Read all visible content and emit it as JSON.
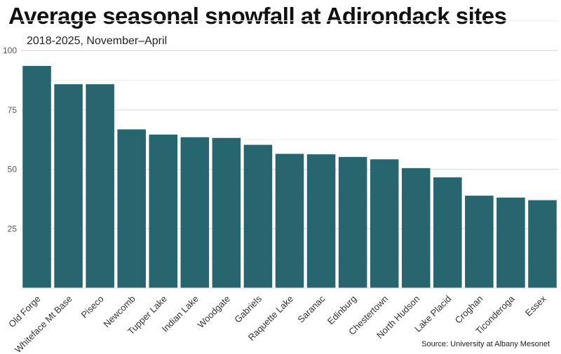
{
  "chart_data": {
    "type": "bar",
    "title": "Average seasonal snowfall at Adirondack sites",
    "subtitle": "2018-2025, November–April",
    "source": "Source: University at Albany Mesonet",
    "xlabel": "",
    "ylabel": "",
    "categories": [
      "Old Forge",
      "Whiteface Mt Base",
      "Piseco",
      "Newcomb",
      "Tupper Lake",
      "Indian Lake",
      "Woodgate",
      "Gabriels",
      "Raquette Lake",
      "Saranac",
      "Edinburg",
      "Chestertown",
      "North Hudson",
      "Lake Placid",
      "Croghan",
      "Ticonderoga",
      "Essex"
    ],
    "values": [
      93.5,
      85.8,
      85.8,
      66.8,
      64.6,
      63.5,
      63.2,
      60.3,
      56.5,
      56.3,
      55.2,
      54.2,
      50.5,
      46.6,
      38.9,
      38.1,
      37.0
    ],
    "ylim": [
      0,
      100
    ],
    "yticks": [
      25,
      50,
      75,
      100
    ],
    "bar_color": "#27666f",
    "grid": true,
    "legend": "none"
  }
}
